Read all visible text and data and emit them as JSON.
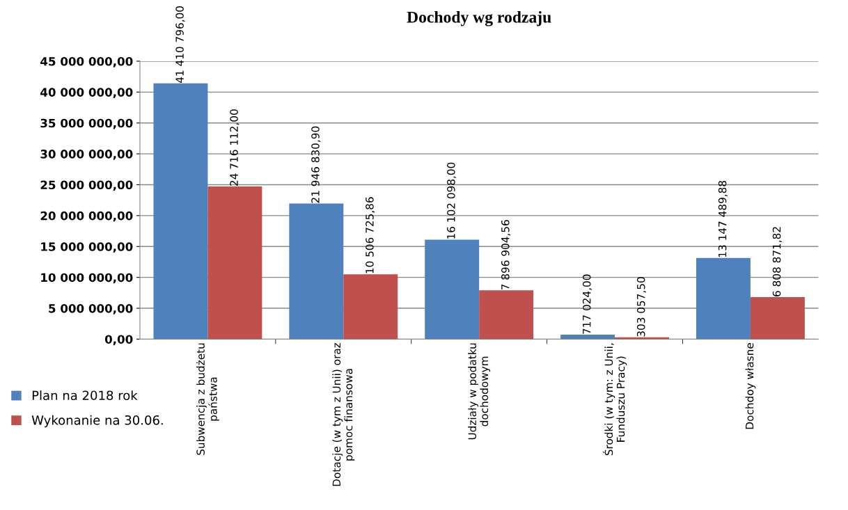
{
  "chart_data": {
    "type": "bar",
    "title": "Dochody wg rodzaju",
    "categories": [
      "Subwencja z budżetu\npaństwa",
      "Dotacje (w tym z Unii) oraz\npomoc finansowa",
      "Udziały w podatku\ndochodowym",
      "Środki (w tym: z Unii,\nFunduszu Pracy)",
      "Dochdoy własne"
    ],
    "series": [
      {
        "name": "Plan na 2018 rok",
        "color": "#4f81bd",
        "values": [
          41410796.0,
          21946830.9,
          16102098.0,
          717024.0,
          13147489.88
        ],
        "value_labels": [
          "41 410 796,00",
          "21 946 830,90",
          "16 102 098,00",
          "717 024,00",
          "13 147 489,88"
        ]
      },
      {
        "name": "Wykonanie na 30.06.",
        "color": "#c0504d",
        "values": [
          24716112.0,
          10506725.86,
          7896904.56,
          303057.5,
          6808871.82
        ],
        "value_labels": [
          "24 716 112,00",
          "10 506 725,86",
          "7 896 904,56",
          "303 057,50",
          "6 808 871,82"
        ]
      }
    ],
    "ylim": [
      0,
      45000000
    ],
    "yticks": [
      {
        "value": 0,
        "label": "0,00"
      },
      {
        "value": 5000000,
        "label": "5 000 000,00"
      },
      {
        "value": 10000000,
        "label": "10 000 000,00"
      },
      {
        "value": 15000000,
        "label": "15 000 000,00"
      },
      {
        "value": 20000000,
        "label": "20 000 000,00"
      },
      {
        "value": 25000000,
        "label": "25 000 000,00"
      },
      {
        "value": 30000000,
        "label": "30 000 000,00"
      },
      {
        "value": 35000000,
        "label": "35 000 000,00"
      },
      {
        "value": 40000000,
        "label": "40 000 000,00"
      },
      {
        "value": 45000000,
        "label": "45 000 000,00"
      }
    ],
    "grid": "y",
    "legend": "bottom left"
  }
}
